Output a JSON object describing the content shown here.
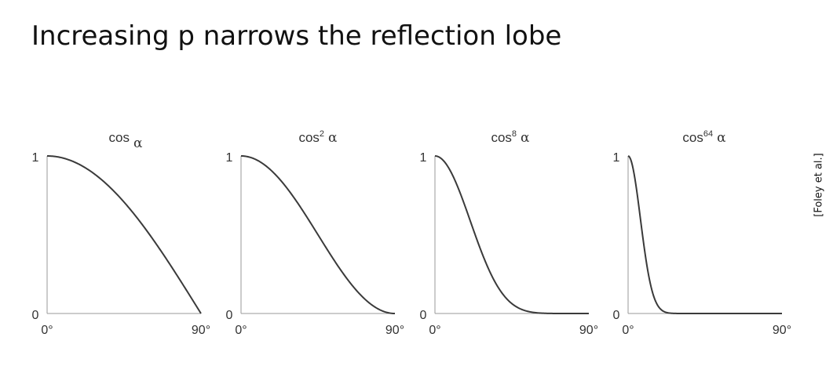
{
  "title": "Increasing p narrows the reflection lobe",
  "citation": "[Foley et al.]",
  "chart_data": [
    {
      "type": "line",
      "title": "cos α",
      "title_base": "cos",
      "title_exp": "",
      "title_var": "α",
      "exponent": 1,
      "x_tick_labels": [
        "0°",
        "90°"
      ],
      "y_tick_labels": [
        "0",
        "1"
      ],
      "xlim": [
        0,
        90
      ],
      "ylim": [
        0,
        1
      ],
      "series": [
        {
          "x": [
            0,
            15,
            30,
            45,
            60,
            75,
            90
          ],
          "values": [
            1,
            0.966,
            0.866,
            0.707,
            0.5,
            0.259,
            0
          ]
        }
      ]
    },
    {
      "type": "line",
      "title": "cos2 α",
      "title_base": "cos",
      "title_exp": "2",
      "title_var": "α",
      "exponent": 2,
      "x_tick_labels": [
        "0°",
        "90°"
      ],
      "y_tick_labels": [
        "0",
        "1"
      ],
      "xlim": [
        0,
        90
      ],
      "ylim": [
        0,
        1
      ],
      "series": [
        {
          "x": [
            0,
            15,
            30,
            45,
            60,
            75,
            90
          ],
          "values": [
            1,
            0.933,
            0.75,
            0.5,
            0.25,
            0.067,
            0
          ]
        }
      ]
    },
    {
      "type": "line",
      "title": "cos8 α",
      "title_base": "cos",
      "title_exp": "8",
      "title_var": "α",
      "exponent": 8,
      "x_tick_labels": [
        "0°",
        "90°"
      ],
      "y_tick_labels": [
        "0",
        "1"
      ],
      "xlim": [
        0,
        90
      ],
      "ylim": [
        0,
        1
      ],
      "series": [
        {
          "x": [
            0,
            15,
            30,
            45,
            60,
            75,
            90
          ],
          "values": [
            1,
            0.758,
            0.316,
            0.063,
            0.004,
            0,
            0
          ]
        }
      ]
    },
    {
      "type": "line",
      "title": "cos64 α",
      "title_base": "cos",
      "title_exp": "64",
      "title_var": "α",
      "exponent": 64,
      "x_tick_labels": [
        "0°",
        "90°"
      ],
      "y_tick_labels": [
        "0",
        "1"
      ],
      "xlim": [
        0,
        90
      ],
      "ylim": [
        0,
        1
      ],
      "series": [
        {
          "x": [
            0,
            5,
            10,
            15,
            20,
            30,
            90
          ],
          "values": [
            1,
            0.78,
            0.378,
            0.108,
            0.019,
            0,
            0
          ]
        }
      ]
    }
  ]
}
